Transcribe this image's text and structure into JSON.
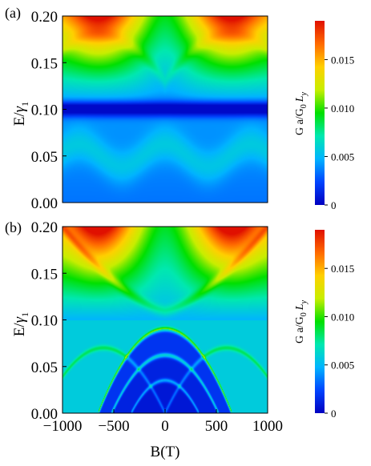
{
  "chart_data": [
    {
      "type": "heatmap",
      "panel_label": "(a)",
      "ylabel_main": "E/",
      "ylabel_sym": "γ",
      "ylabel_sub": "1",
      "xlabel": "",
      "ylim": [
        0.0,
        0.2
      ],
      "xlim": [
        -1000,
        1000
      ],
      "ytick_labels": [
        "0.00",
        "0.05",
        "0.10",
        "0.15",
        "0.20"
      ],
      "yticks": [
        0.0,
        0.05,
        0.1,
        0.15,
        0.2
      ],
      "xtick_labels": [],
      "colorbar": {
        "label_main": "G a/G",
        "label_sub": "0",
        "label_tail": "L",
        "label_tail_sub": "y",
        "range": [
          0,
          0.019
        ],
        "tick_values": [
          0,
          0.005,
          0.01,
          0.015
        ],
        "tick_labels": [
          "0",
          "0.005",
          "0.010",
          "0.015"
        ]
      },
      "features": {
        "base_low_E": 0.0048,
        "gap_energy": 0.1,
        "gap_value": 0.0005,
        "max_value": 0.019,
        "max_locations_B": [
          -650,
          650
        ]
      }
    },
    {
      "type": "heatmap",
      "panel_label": "(b)",
      "ylabel_main": "E/",
      "ylabel_sym": "γ",
      "ylabel_sub": "1",
      "xlabel": "B(T)",
      "ylim": [
        0.0,
        0.2
      ],
      "xlim": [
        -1000,
        1000
      ],
      "ytick_labels": [
        "0.00",
        "0.05",
        "0.10",
        "0.15",
        "0.20"
      ],
      "yticks": [
        0.0,
        0.05,
        0.1,
        0.15,
        0.2
      ],
      "xtick_labels": [
        "−1000",
        "−500",
        "0",
        "500",
        "1000"
      ],
      "xticks": [
        -1000,
        -500,
        0,
        500,
        1000
      ],
      "colorbar": {
        "label_main": "G a/G",
        "label_sub": "0",
        "label_tail": "L",
        "label_tail_sub": "y",
        "range": [
          0,
          0.019
        ],
        "tick_values": [
          0,
          0.005,
          0.01,
          0.015
        ],
        "tick_labels": [
          "0",
          "0.005",
          "0.010",
          "0.015"
        ]
      },
      "features": {
        "dark_region_top_E": 0.09,
        "arc_peaks_E": [
          0.055,
          0.033,
          0.02
        ],
        "max_value": 0.019,
        "max_locations_B": [
          -650,
          650
        ]
      }
    }
  ],
  "colors": {
    "colormap": [
      "#0000c0",
      "#0044ff",
      "#00b4ff",
      "#00e8b0",
      "#00e000",
      "#c8ee00",
      "#ffd000",
      "#ff6a00",
      "#e01000"
    ]
  }
}
